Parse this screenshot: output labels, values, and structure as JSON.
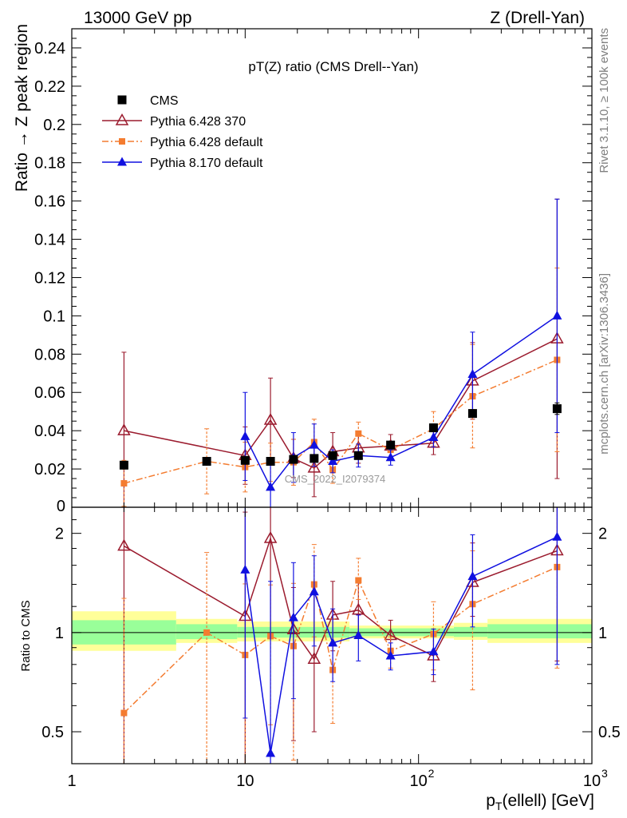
{
  "header": {
    "left": "13000 GeV pp",
    "right": "Z (Drell-Yan)"
  },
  "side_labels": {
    "rivet": "Rivet 3.1.10, ≥ 100k events",
    "mcplots": "mcplots.cern.ch [arXiv:1306.3436]"
  },
  "chart_data": [
    {
      "type": "scatter",
      "title": "pT(Z) ratio (CMS Drell--Yan)",
      "watermark": "CMS_2022_I2079374",
      "ylabel": "Ratio → Z peak region",
      "xscale": "log",
      "xlim": [
        1,
        1000
      ],
      "ylim": [
        0,
        0.25
      ],
      "yticks": [
        0.02,
        0.04,
        0.06,
        0.08,
        0.1,
        0.12,
        0.14,
        0.16,
        0.18,
        0.2,
        0.22,
        0.24
      ],
      "ytick_labels": [
        "0.02",
        "0.04",
        "0.06",
        "0.08",
        "0.1",
        "0.12",
        "0.14",
        "0.16",
        "0.18",
        "0.2",
        "0.22",
        "0.24"
      ],
      "y_zero_label": "0",
      "legend_position": "top-left",
      "series": [
        {
          "name": "CMS",
          "color": "#000000",
          "marker": "filled-square",
          "line": "none",
          "x": [
            2,
            6,
            10,
            14,
            19,
            25,
            32,
            45,
            69,
            122,
            205,
            630
          ],
          "y": [
            0.022,
            0.024,
            0.0245,
            0.024,
            0.025,
            0.0255,
            0.027,
            0.027,
            0.0325,
            0.0415,
            0.049,
            0.0515
          ],
          "err": [
            0.002,
            0.001,
            0.001,
            0.001,
            0.001,
            0.001,
            0.001,
            0.001,
            0.0015,
            0.002,
            0.002,
            0.003
          ]
        },
        {
          "name": "Pythia 6.428 370",
          "color": "#9b1b2e",
          "marker": "open-triangle",
          "line": "solid",
          "x": [
            2,
            10,
            14,
            19,
            25,
            32,
            45,
            69,
            122,
            205,
            630
          ],
          "y": [
            0.04,
            0.027,
            0.0455,
            0.0255,
            0.0205,
            0.029,
            0.031,
            0.032,
            0.0335,
            0.066,
            0.088
          ],
          "err": [
            0.041,
            0.015,
            0.022,
            0.01,
            0.015,
            0.01,
            0.008,
            0.006,
            0.006,
            0.02,
            0.073
          ]
        },
        {
          "name": "Pythia 6.428 default",
          "color": "#f47c30",
          "marker": "filled-square-small",
          "line": "dashdot",
          "x": [
            2,
            6,
            10,
            14,
            19,
            25,
            32,
            45,
            69,
            122,
            205,
            630
          ],
          "y": [
            0.0125,
            0.024,
            0.021,
            0.0235,
            0.0235,
            0.034,
            0.0195,
            0.0385,
            0.03,
            0.041,
            0.058,
            0.077
          ],
          "err": [
            0.012,
            0.017,
            0.013,
            0.01,
            0.012,
            0.012,
            0.007,
            0.006,
            0.004,
            0.009,
            0.027,
            0.048
          ]
        },
        {
          "name": "Pythia 8.170 default",
          "color": "#1010e0",
          "marker": "filled-triangle",
          "line": "solid",
          "x": [
            10,
            14,
            19,
            25,
            32,
            45,
            69,
            122,
            205,
            630
          ],
          "y": [
            0.037,
            0.0105,
            0.026,
            0.0325,
            0.024,
            0.027,
            0.026,
            0.0365,
            0.0695,
            0.1
          ],
          "err": [
            0.023,
            0.012,
            0.013,
            0.011,
            0.006,
            0.006,
            0.004,
            0.005,
            0.022,
            0.061
          ]
        }
      ]
    },
    {
      "type": "scatter",
      "ylabel": "Ratio to CMS",
      "xlabel": "p_T(ellell) [GeV]",
      "xscale": "log",
      "yscale": "log",
      "xlim": [
        1,
        1000
      ],
      "ylim": [
        0.4,
        2.4
      ],
      "yticks": [
        0.5,
        1,
        2
      ],
      "ytick_labels": [
        "0.5",
        "1",
        "2"
      ],
      "xtick_labels": [
        "1",
        "10",
        "10",
        "10"
      ],
      "xtick_exponents": [
        "",
        "",
        "2",
        "3"
      ],
      "uncertainty_bands": [
        {
          "x0": 1,
          "x1": 4,
          "yellow": [
            0.88,
            1.16
          ],
          "green": [
            0.92,
            1.09
          ]
        },
        {
          "x0": 4,
          "x1": 9,
          "yellow": [
            0.93,
            1.1
          ],
          "green": [
            0.955,
            1.06
          ]
        },
        {
          "x0": 9,
          "x1": 40,
          "yellow": [
            0.94,
            1.08
          ],
          "green": [
            0.965,
            1.04
          ]
        },
        {
          "x0": 40,
          "x1": 160,
          "yellow": [
            0.96,
            1.05
          ],
          "green": [
            0.975,
            1.03
          ]
        },
        {
          "x0": 160,
          "x1": 250,
          "yellow": [
            0.95,
            1.07
          ],
          "green": [
            0.97,
            1.04
          ]
        },
        {
          "x0": 250,
          "x1": 1000,
          "yellow": [
            0.93,
            1.1
          ],
          "green": [
            0.96,
            1.06
          ]
        }
      ],
      "series": [
        {
          "name": "Pythia 6.428 370",
          "color": "#9b1b2e",
          "marker": "open-triangle",
          "line": "solid",
          "x": [
            2,
            10,
            14,
            19,
            25,
            32,
            45,
            69,
            122,
            205,
            630
          ],
          "y": [
            1.83,
            1.12,
            1.93,
            1.02,
            0.83,
            1.13,
            1.17,
            0.98,
            0.85,
            1.42,
            1.77
          ],
          "err_lo": [
            1.6,
            0.8,
            0.94,
            0.55,
            0.33,
            0.25,
            0.18,
            0.1,
            0.14,
            0.3,
            0.95
          ],
          "err_hi": [
            1.4,
            1.2,
            1.1,
            0.35,
            0.55,
            0.3,
            0.25,
            0.11,
            0.15,
            0.45,
            1.2
          ]
        },
        {
          "name": "Pythia 6.428 default",
          "color": "#f47c30",
          "marker": "filled-square-small",
          "line": "dashdot",
          "x": [
            2,
            6,
            10,
            14,
            19,
            25,
            32,
            45,
            69,
            122,
            205,
            630
          ],
          "y": [
            0.57,
            1.0,
            0.855,
            0.975,
            0.91,
            1.4,
            0.77,
            1.44,
            0.88,
            0.99,
            1.22,
            1.58
          ],
          "err_lo": [
            0.55,
            0.68,
            0.52,
            0.45,
            0.5,
            0.43,
            0.24,
            0.18,
            0.1,
            0.22,
            0.55,
            0.8
          ],
          "err_hi": [
            0.7,
            0.75,
            0.55,
            0.42,
            0.5,
            0.45,
            0.33,
            0.24,
            0.09,
            0.25,
            0.55,
            0.9
          ]
        },
        {
          "name": "Pythia 8.170 default",
          "color": "#1010e0",
          "marker": "filled-triangle",
          "line": "solid",
          "x": [
            10,
            14,
            19,
            25,
            32,
            45,
            69,
            122,
            205,
            630
          ],
          "y": [
            1.55,
            0.43,
            1.11,
            1.33,
            0.93,
            0.98,
            0.85,
            0.875,
            1.48,
            1.95
          ],
          "err_lo": [
            1.0,
            0.5,
            0.48,
            0.42,
            0.22,
            0.16,
            0.08,
            0.13,
            0.44,
            1.15
          ],
          "err_hi": [
            0.9,
            1.0,
            0.52,
            0.38,
            0.25,
            0.15,
            0.08,
            0.15,
            0.5,
            1.0
          ]
        }
      ]
    }
  ]
}
